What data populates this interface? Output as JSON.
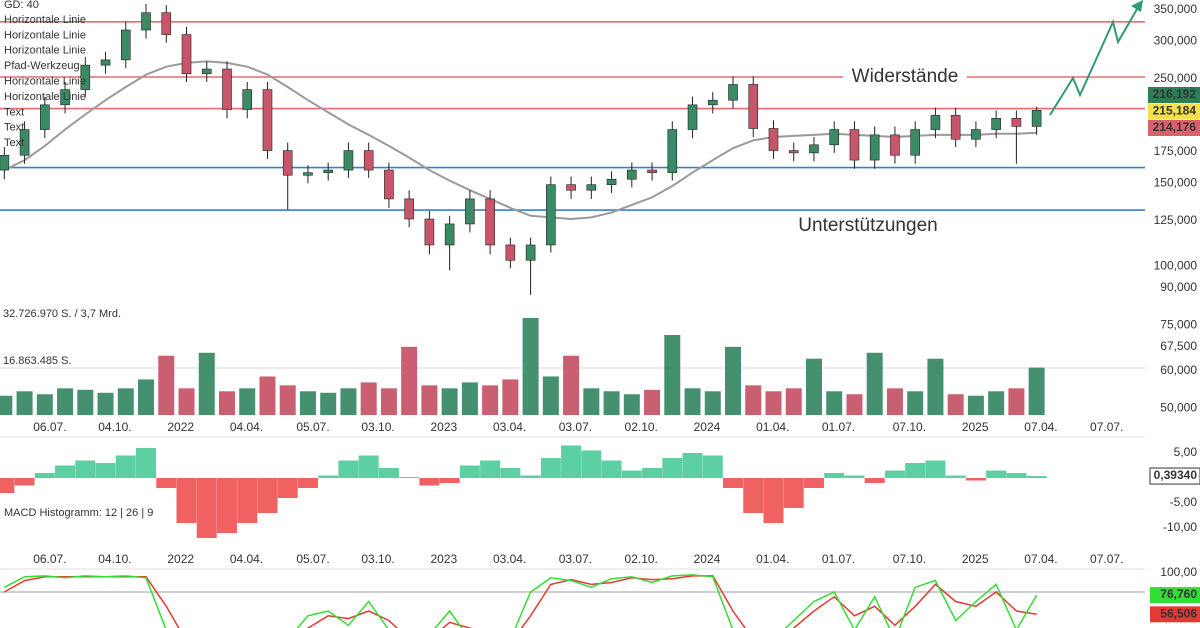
{
  "chart_data": {
    "type": "candlestick",
    "x": [
      "2021-05-04",
      "2021-06-01",
      "2021-06-29",
      "2021-07-27",
      "2021-08-24",
      "2021-09-21",
      "2021-10-19",
      "2021-11-16",
      "2021-12-14",
      "2022-01-11",
      "2022-02-08",
      "2022-03-08",
      "2022-04-05",
      "2022-05-03",
      "2022-05-31",
      "2022-06-28",
      "2022-07-26",
      "2022-08-23",
      "2022-09-20",
      "2022-10-18",
      "2022-11-15",
      "2022-12-13",
      "2023-01-10",
      "2023-02-07",
      "2023-03-07",
      "2023-04-04",
      "2023-05-02",
      "2023-05-30",
      "2023-06-27",
      "2023-07-25",
      "2023-08-22",
      "2023-09-19",
      "2023-10-17",
      "2023-11-14",
      "2023-12-12",
      "2024-01-09",
      "2024-02-06",
      "2024-03-05",
      "2024-04-02",
      "2024-04-30",
      "2024-05-28",
      "2024-06-25",
      "2024-07-23",
      "2024-08-20",
      "2024-09-17",
      "2024-10-15",
      "2024-11-12",
      "2024-12-10",
      "2025-01-07",
      "2025-02-04",
      "2025-03-04",
      "2025-04-01"
    ],
    "xlim": [
      "2021-04-28",
      "2025-11-13"
    ],
    "xticks": [
      {
        "value": "2021-07-06",
        "label": "06.07."
      },
      {
        "value": "2021-10-04",
        "label": "04.10."
      },
      {
        "value": "2022-01-03",
        "label": "2022"
      },
      {
        "value": "2022-04-04",
        "label": "04.04."
      },
      {
        "value": "2022-07-05",
        "label": "05.07."
      },
      {
        "value": "2022-10-03",
        "label": "03.10."
      },
      {
        "value": "2023-01-02",
        "label": "2023"
      },
      {
        "value": "2023-04-03",
        "label": "03.04."
      },
      {
        "value": "2023-07-03",
        "label": "03.07."
      },
      {
        "value": "2023-10-02",
        "label": "02.10."
      },
      {
        "value": "2024-01-01",
        "label": "2024"
      },
      {
        "value": "2024-04-01",
        "label": "01.04."
      },
      {
        "value": "2024-07-01",
        "label": "01.07."
      },
      {
        "value": "2024-10-07",
        "label": "07.10."
      },
      {
        "value": "2025-01-06",
        "label": "2025"
      },
      {
        "value": "2025-04-07",
        "label": "07.04."
      },
      {
        "value": "2025-07-07",
        "label": "07.07."
      }
    ],
    "log_y": true,
    "ylim": [
      48400,
      367000
    ],
    "yticks": [
      {
        "value": 350000,
        "label": "350,000"
      },
      {
        "value": 300000,
        "label": "300,000"
      },
      {
        "value": 250000,
        "label": "250,000"
      },
      {
        "value": 175000,
        "label": "175,000"
      },
      {
        "value": 150000,
        "label": "150,000"
      },
      {
        "value": 125000,
        "label": "125,000"
      },
      {
        "value": 100000,
        "label": "100,000"
      },
      {
        "value": 90000,
        "label": "90,000"
      },
      {
        "value": 75000,
        "label": "75,000"
      },
      {
        "value": 67500,
        "label": "67,500"
      },
      {
        "value": 60000,
        "label": "60,000"
      },
      {
        "value": 50000,
        "label": "50,000"
      }
    ],
    "open": [
      160000,
      172000,
      195000,
      220000,
      237000,
      267000,
      274000,
      317000,
      345000,
      310000,
      256000,
      262000,
      215000,
      237000,
      176000,
      156000,
      158000,
      160000,
      176000,
      160000,
      139000,
      126000,
      111000,
      123000,
      139000,
      111000,
      103000,
      111000,
      149000,
      145000,
      149000,
      153000,
      160000,
      158000,
      195000,
      220000,
      225000,
      243000,
      196000,
      176000,
      174000,
      181000,
      195000,
      168000,
      190000,
      172000,
      195000,
      209000,
      186000,
      195000,
      206000,
      198000
    ],
    "high": [
      179000,
      203000,
      229000,
      246000,
      278000,
      285000,
      330000,
      360000,
      358000,
      322000,
      272000,
      272000,
      246000,
      246000,
      183000,
      164000,
      166000,
      183000,
      183000,
      166000,
      145000,
      131000,
      128000,
      145000,
      145000,
      115000,
      115000,
      155000,
      155000,
      155000,
      159000,
      166000,
      166000,
      203000,
      229000,
      234000,
      253000,
      253000,
      204000,
      183000,
      188000,
      203000,
      203000,
      198000,
      198000,
      203000,
      217000,
      217000,
      203000,
      214000,
      214000,
      218000
    ],
    "low": [
      153000,
      165000,
      187000,
      211000,
      228000,
      256000,
      263000,
      304000,
      298000,
      246000,
      246000,
      206000,
      206000,
      169000,
      132000,
      150000,
      152000,
      154000,
      154000,
      133000,
      121000,
      106000,
      98000,
      118000,
      106000,
      99000,
      87000,
      107000,
      139000,
      139000,
      143000,
      147000,
      152000,
      152000,
      187000,
      211000,
      216000,
      188000,
      169000,
      167000,
      167000,
      174000,
      161000,
      161000,
      165000,
      165000,
      187000,
      179000,
      179000,
      187000,
      165000,
      190000
    ],
    "close": [
      172000,
      195000,
      220000,
      237000,
      267000,
      274000,
      317000,
      345000,
      310000,
      256000,
      262000,
      215000,
      237000,
      176000,
      156000,
      158000,
      160000,
      176000,
      160000,
      139000,
      126000,
      111000,
      123000,
      139000,
      111000,
      103000,
      111000,
      149000,
      145000,
      149000,
      153000,
      160000,
      158000,
      195000,
      220000,
      225000,
      243000,
      196000,
      176000,
      174000,
      181000,
      195000,
      168000,
      190000,
      172000,
      195000,
      209000,
      186000,
      195000,
      206000,
      198000,
      214176
    ],
    "up_color": "#3b8a66",
    "down_color": "#c8566a",
    "moving_average": {
      "name": "GD: 40",
      "color": "#9a9a9a",
      "values": [
        160000,
        168000,
        180000,
        195000,
        210000,
        225000,
        240000,
        255000,
        265000,
        270000,
        272000,
        270000,
        265000,
        255000,
        240000,
        225000,
        212000,
        200000,
        190000,
        180000,
        170000,
        160000,
        152000,
        145000,
        139000,
        133000,
        128000,
        127000,
        126000,
        127000,
        130000,
        135000,
        140000,
        148000,
        158000,
        168000,
        178000,
        185000,
        188000,
        189000,
        190000,
        191000,
        190000,
        189000,
        188000,
        189000,
        190000,
        190000,
        190000,
        191000,
        191000,
        192000
      ]
    },
    "tools": [
      {
        "label": "Horizontale Linie",
        "color": "#e8545c"
      },
      {
        "label": "Horizontale Linie",
        "color": "#e8545c"
      },
      {
        "label": "Horizontale Linie",
        "color": "#e8545c"
      },
      {
        "label": "Pfad-Werkzeug",
        "color": "#555555"
      },
      {
        "label": "Horizontale Linie",
        "color": "#2f74c0"
      },
      {
        "label": "Horizontale Linie",
        "color": "#2f74c0"
      },
      {
        "label": "Text",
        "color": "#444444"
      },
      {
        "label": "Text",
        "color": "#444444"
      },
      {
        "label": "Text",
        "color": "#444444"
      }
    ],
    "horizontal_lines": [
      {
        "value": 330000,
        "color": "#ea6a70"
      },
      {
        "value": 252000,
        "color": "#ea6a70",
        "label": "Widerstände"
      },
      {
        "value": 216000,
        "color": "#ea6a70"
      },
      {
        "value": 162000,
        "color": "#3a80c6"
      },
      {
        "value": 131600,
        "color": "#3a80c6",
        "label": "Unterstützungen"
      }
    ],
    "price_tags": [
      {
        "label": "216,192",
        "color": "#2f7d57",
        "text_color": "#ffffff"
      },
      {
        "label": "215,184",
        "color": "#f3e04b",
        "text_color": "#222222"
      },
      {
        "label": "214,176",
        "color": "#d9616d",
        "text_color": "#ffffff"
      }
    ],
    "volume": {
      "ylim": [
        0,
        32726970
      ],
      "yticks": [
        {
          "value": 32726970,
          "label": "32.726.970 S. / 3,7 Mrd."
        },
        {
          "value": 16863485,
          "label": "16.863.485 S."
        }
      ],
      "values": [
        6500000,
        8000000,
        7000000,
        9000000,
        8500000,
        7500000,
        9000000,
        12000000,
        20000000,
        9000000,
        21000000,
        8000000,
        9000000,
        13000000,
        10000000,
        8000000,
        7500000,
        9000000,
        11000000,
        9000000,
        23000000,
        10000000,
        9000000,
        11000000,
        10000000,
        12000000,
        32726970,
        13000000,
        20000000,
        9000000,
        8000000,
        7000000,
        8500000,
        27000000,
        9000000,
        8000000,
        23000000,
        10000000,
        8000000,
        9000000,
        19000000,
        8000000,
        7000000,
        21000000,
        9000000,
        8000000,
        19000000,
        7000000,
        6500000,
        8000000,
        9000000,
        16000000
      ]
    },
    "macd": {
      "name": "MACD Histogramm: 12 | 26 | 9",
      "ylim": [
        -14,
        7.6
      ],
      "yticks": [
        {
          "value": 5,
          "label": "5,00"
        },
        {
          "value": -5,
          "label": "-5,00"
        },
        {
          "value": -10,
          "label": "-10,00"
        }
      ],
      "pos_color": "#5ccfa3",
      "neg_color": "#f06262",
      "values": [
        -3,
        -1.5,
        1,
        2.5,
        3.5,
        3,
        4.5,
        6,
        -2,
        -9,
        -12,
        -11,
        -9,
        -7,
        -4,
        -2,
        0.5,
        3.5,
        4.5,
        2,
        0.2,
        -1.5,
        -1,
        2.5,
        3.5,
        2,
        0.5,
        4,
        6.5,
        5.5,
        3.5,
        1.5,
        2,
        4,
        5,
        4.5,
        -2,
        -7,
        -9,
        -6,
        -2,
        1,
        0.5,
        -1,
        1.5,
        3,
        3.5,
        0.5,
        -0.5,
        1.5,
        1,
        0.3934
      ],
      "current": {
        "value": 0.3934,
        "label": "0,39340"
      }
    },
    "stochastic": {
      "ylim": [
        0,
        100
      ],
      "yticks": [
        {
          "value": 100,
          "label": "100,00"
        }
      ],
      "levels": [
        80
      ],
      "series": [
        {
          "color": "#33dd33",
          "current": {
            "value": 76.76,
            "label": "76,760"
          },
          "values": [
            85,
            96,
            97,
            95,
            97,
            96,
            97,
            95,
            40,
            15,
            20,
            30,
            25,
            20,
            30,
            55,
            60,
            45,
            70,
            40,
            20,
            35,
            60,
            30,
            20,
            30,
            80,
            95,
            92,
            85,
            94,
            96,
            90,
            97,
            98,
            96,
            40,
            20,
            30,
            50,
            70,
            80,
            40,
            75,
            30,
            85,
            92,
            50,
            70,
            88,
            40,
            76.76
          ]
        },
        {
          "color": "#e53935",
          "current": {
            "value": 56.506,
            "label": "56,506"
          },
          "values": [
            80,
            92,
            96,
            96,
            96,
            96,
            96,
            96,
            65,
            28,
            18,
            26,
            26,
            24,
            26,
            42,
            55,
            52,
            60,
            50,
            30,
            30,
            48,
            42,
            26,
            26,
            55,
            88,
            93,
            88,
            90,
            95,
            93,
            94,
            97,
            97,
            60,
            30,
            28,
            42,
            60,
            75,
            55,
            65,
            45,
            65,
            88,
            70,
            65,
            80,
            60,
            56.506
          ]
        }
      ]
    }
  }
}
